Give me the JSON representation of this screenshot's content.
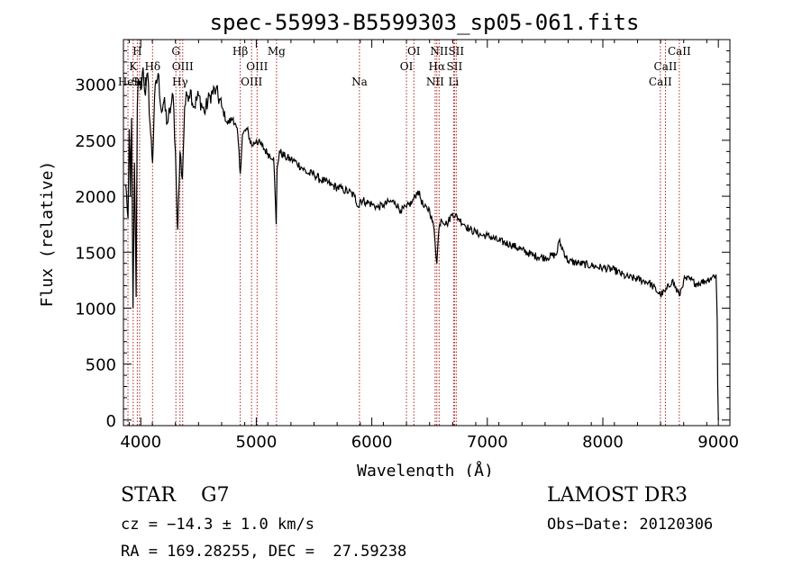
{
  "chart_data": {
    "type": "line",
    "title": "spec-55993-B5599303_sp05-061.fits",
    "xlabel": "Wavelength (Å)",
    "ylabel": "Flux (relative)",
    "xlim": [
      3850,
      9100
    ],
    "ylim": [
      -50,
      3400
    ],
    "xticks": [
      4000,
      5000,
      6000,
      7000,
      8000,
      9000
    ],
    "yticks": [
      0,
      500,
      1000,
      1500,
      2000,
      2500,
      3000
    ],
    "series": [
      {
        "name": "flux",
        "x": [
          3870,
          3890,
          3900,
          3910,
          3920,
          3933,
          3945,
          3960,
          3970,
          3980,
          4000,
          4020,
          4040,
          4060,
          4080,
          4102,
          4120,
          4150,
          4180,
          4200,
          4230,
          4260,
          4280,
          4300,
          4310,
          4320,
          4340,
          4360,
          4380,
          4400,
          4430,
          4460,
          4500,
          4550,
          4600,
          4650,
          4700,
          4750,
          4800,
          4840,
          4861,
          4880,
          4920,
          4960,
          5000,
          5050,
          5100,
          5150,
          5172,
          5180,
          5200,
          5250,
          5300,
          5350,
          5400,
          5450,
          5500,
          5550,
          5600,
          5650,
          5700,
          5750,
          5800,
          5850,
          5890,
          5900,
          5950,
          6000,
          6050,
          6100,
          6150,
          6200,
          6250,
          6300,
          6350,
          6400,
          6450,
          6500,
          6540,
          6563,
          6580,
          6600,
          6650,
          6700,
          6750,
          6800,
          6850,
          6900,
          6950,
          7000,
          7100,
          7200,
          7300,
          7400,
          7500,
          7600,
          7620,
          7700,
          7800,
          7900,
          8000,
          8100,
          8200,
          8300,
          8400,
          8498,
          8542,
          8600,
          8662,
          8700,
          8750,
          8800,
          8850,
          8900,
          8950,
          8980,
          8990,
          8995,
          9000
        ],
        "values": [
          2100,
          1800,
          2600,
          2000,
          2700,
          1000,
          2300,
          1100,
          2800,
          3050,
          2950,
          3150,
          2900,
          3100,
          2650,
          2300,
          2900,
          3100,
          2750,
          2850,
          2650,
          2800,
          2900,
          2400,
          2000,
          1700,
          2400,
          2150,
          2800,
          2900,
          2950,
          2800,
          2900,
          2750,
          2900,
          2950,
          2800,
          2650,
          2700,
          2550,
          2200,
          2550,
          2600,
          2450,
          2500,
          2450,
          2380,
          2350,
          1750,
          2250,
          2400,
          2350,
          2330,
          2300,
          2250,
          2200,
          2200,
          2150,
          2130,
          2100,
          2080,
          2060,
          2040,
          2000,
          1900,
          1970,
          1950,
          1930,
          1900,
          1920,
          1950,
          1950,
          1870,
          1900,
          1950,
          2050,
          1900,
          1880,
          1700,
          1400,
          1700,
          1800,
          1750,
          1850,
          1800,
          1750,
          1700,
          1680,
          1650,
          1650,
          1600,
          1570,
          1520,
          1470,
          1450,
          1480,
          1600,
          1420,
          1400,
          1380,
          1360,
          1340,
          1280,
          1260,
          1230,
          1120,
          1150,
          1250,
          1110,
          1250,
          1260,
          1220,
          1230,
          1250,
          1280,
          1300,
          900,
          300,
          0
        ]
      }
    ],
    "lines": [
      {
        "wave": 3889,
        "label": "HeI",
        "row": 3
      },
      {
        "wave": 3934,
        "label": "K",
        "row": 2
      },
      {
        "wave": 3970,
        "label": "H",
        "row": 1
      },
      {
        "wave": 3990,
        "label": "SII",
        "row": 3
      },
      {
        "wave": 4102,
        "label": "Hδ",
        "row": 2
      },
      {
        "wave": 4304,
        "label": "G",
        "row": 1
      },
      {
        "wave": 4340,
        "label": "Hγ",
        "row": 3
      },
      {
        "wave": 4363,
        "label": "OIII",
        "row": 2
      },
      {
        "wave": 4861,
        "label": "Hβ",
        "row": 1
      },
      {
        "wave": 4959,
        "label": "OIII",
        "row": 3
      },
      {
        "wave": 5007,
        "label": "OIII",
        "row": 2
      },
      {
        "wave": 5175,
        "label": "Mg",
        "row": 1
      },
      {
        "wave": 5893,
        "label": "Na",
        "row": 3
      },
      {
        "wave": 6300,
        "label": "OI",
        "row": 2
      },
      {
        "wave": 6364,
        "label": "OI",
        "row": 1
      },
      {
        "wave": 6548,
        "label": "NII",
        "row": 3
      },
      {
        "wave": 6563,
        "label": "Hα",
        "row": 2
      },
      {
        "wave": 6583,
        "label": "NII",
        "row": 1
      },
      {
        "wave": 6708,
        "label": "Li",
        "row": 3
      },
      {
        "wave": 6716,
        "label": "SII",
        "row": 2
      },
      {
        "wave": 6731,
        "label": "SII",
        "row": 1
      },
      {
        "wave": 8498,
        "label": "CaII",
        "row": 3
      },
      {
        "wave": 8542,
        "label": "CaII",
        "row": 2
      },
      {
        "wave": 8662,
        "label": "CaII",
        "row": 1
      }
    ]
  },
  "footer": {
    "class_label": "STAR",
    "subclass": "G7",
    "survey": "LAMOST DR3",
    "cz": "cz = −14.3 ± 1.0 km/s",
    "obs_date": "Obs−Date: 20120306",
    "radec": "RA = 169.28255, DEC =  27.59238"
  },
  "colors": {
    "axis": "#000000",
    "flux": "#000000",
    "line_marker": "#b22222"
  }
}
